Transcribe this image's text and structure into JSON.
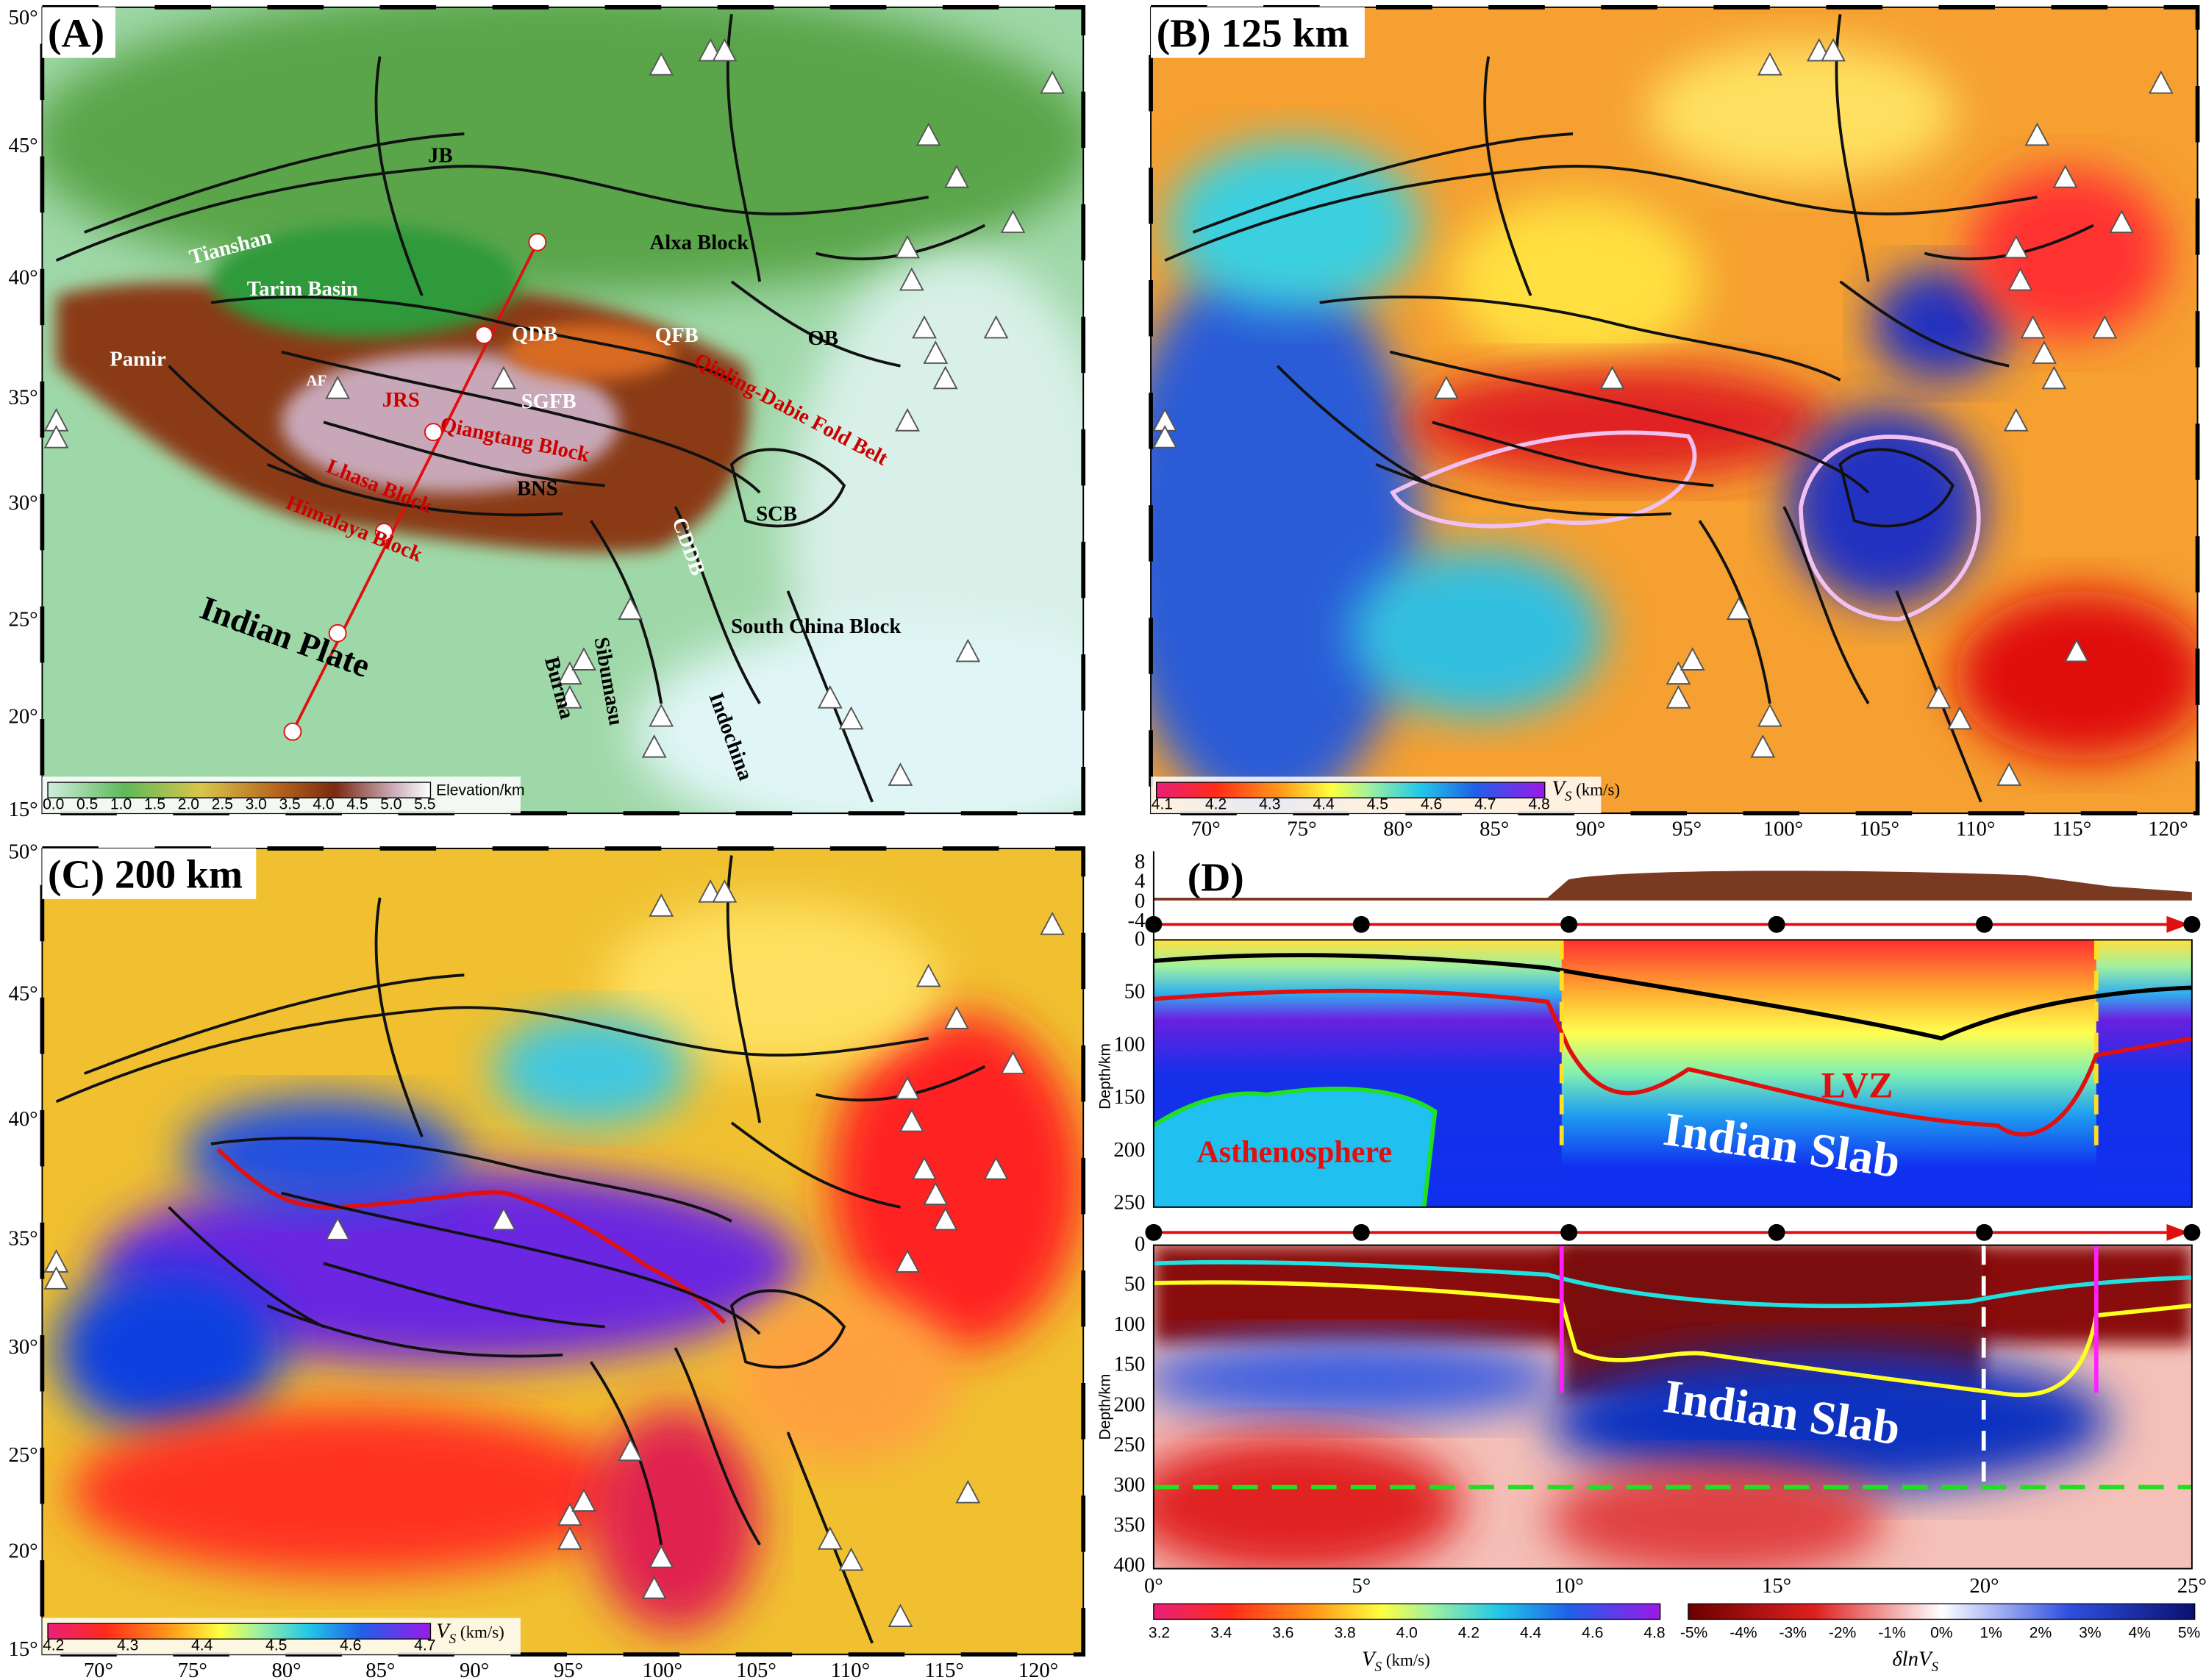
{
  "latitude_ticks": [
    "50°",
    "45°",
    "40°",
    "35°",
    "30°",
    "25°",
    "20°",
    "15°"
  ],
  "longitude_ticks": [
    "70°",
    "75°",
    "80°",
    "85°",
    "90°",
    "95°",
    "100°",
    "105°",
    "110°",
    "115°",
    "120°"
  ],
  "panel_a": {
    "label": "(A)",
    "labels": [
      "JB",
      "Tianshan",
      "Tarim Basin",
      "Alxa Block",
      "Pamir",
      "QDB",
      "QFB",
      "OB",
      "AF",
      "JRS",
      "SGFB",
      "Qinling-Dabie Fold Belt",
      "Qiangtang Block",
      "SCB",
      "BNS",
      "Lhasa Block",
      "Himalaya Block",
      "CDDB",
      "South China Block",
      "Indian Plate",
      "Burma",
      "Sibumasu",
      "Indochina"
    ],
    "colorbar": {
      "title": "Elevation/km",
      "ticks": [
        "0.0",
        "0.5",
        "1.0",
        "1.5",
        "2.0",
        "2.5",
        "3.0",
        "3.5",
        "4.0",
        "4.5",
        "5.0",
        "5.5"
      ]
    }
  },
  "panel_b": {
    "label": "(B) 125 km",
    "colorbar": {
      "symbol": "V",
      "subscript": "S",
      "unit": "(km/s)",
      "ticks": [
        "4.1",
        "4.2",
        "4.3",
        "4.4",
        "4.5",
        "4.6",
        "4.7",
        "4.8"
      ]
    }
  },
  "panel_c": {
    "label": "(C) 200 km",
    "colorbar": {
      "symbol": "V",
      "subscript": "S",
      "unit": "(km/s)",
      "ticks": [
        "4.2",
        "4.3",
        "4.4",
        "4.5",
        "4.6",
        "4.7"
      ]
    }
  },
  "panel_d": {
    "label": "(D)",
    "elevation_ticks": [
      "8",
      "4",
      "0",
      "-4"
    ],
    "depth_label": "Depth/km",
    "upper_depth_ticks": [
      "0",
      "50",
      "100",
      "150",
      "200",
      "250"
    ],
    "lower_depth_ticks": [
      "0",
      "50",
      "100",
      "150",
      "200",
      "250",
      "300",
      "350",
      "400"
    ],
    "distance_ticks": [
      "0°",
      "5°",
      "10°",
      "15°",
      "20°",
      "25°"
    ],
    "labels": {
      "lvz": "LVZ",
      "asthenosphere": "Asthenosphere",
      "slab_upper": "Indian Slab",
      "slab_lower": "Indian Slab"
    },
    "vs_colorbar": {
      "symbol": "V",
      "subscript": "S",
      "unit": "(km/s)",
      "ticks": [
        "3.2",
        "3.4",
        "3.6",
        "3.8",
        "4.0",
        "4.2",
        "4.4",
        "4.6",
        "4.8"
      ]
    },
    "dlnvs_colorbar": {
      "symbol": "δlnV",
      "subscript": "S",
      "ticks": [
        "-5%",
        "-4%",
        "-3%",
        "-2%",
        "-1%",
        "0%",
        "1%",
        "2%",
        "3%",
        "4%",
        "5%"
      ]
    }
  }
}
